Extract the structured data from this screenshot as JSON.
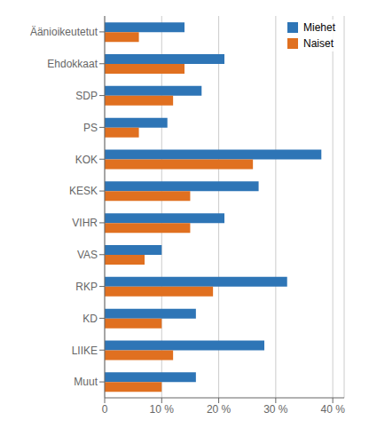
{
  "chart_data": {
    "type": "bar",
    "orientation": "horizontal",
    "categories": [
      "Äänioikeutetut",
      "Ehdokkaat",
      "SDP",
      "PS",
      "KOK",
      "KESK",
      "VIHR",
      "VAS",
      "RKP",
      "KD",
      "LIIKE",
      "Muut"
    ],
    "series": [
      {
        "name": "Miehet",
        "color": "#2E75B6",
        "values": [
          14,
          21,
          17,
          11,
          38,
          27,
          21,
          10,
          32,
          16,
          28,
          16
        ]
      },
      {
        "name": "Naiset",
        "color": "#E07020",
        "values": [
          6,
          14,
          12,
          6,
          26,
          15,
          15,
          7,
          19,
          10,
          12,
          10
        ]
      }
    ],
    "xlim": [
      0,
      42
    ],
    "xticks": [
      0,
      {
        "value": 10,
        "label": "10 %"
      },
      {
        "value": 20,
        "label": "20 %"
      },
      {
        "value": 30,
        "label": "30 %"
      },
      {
        "value": 40,
        "label": "40 %"
      }
    ],
    "grid": true,
    "legend": "upper right"
  }
}
